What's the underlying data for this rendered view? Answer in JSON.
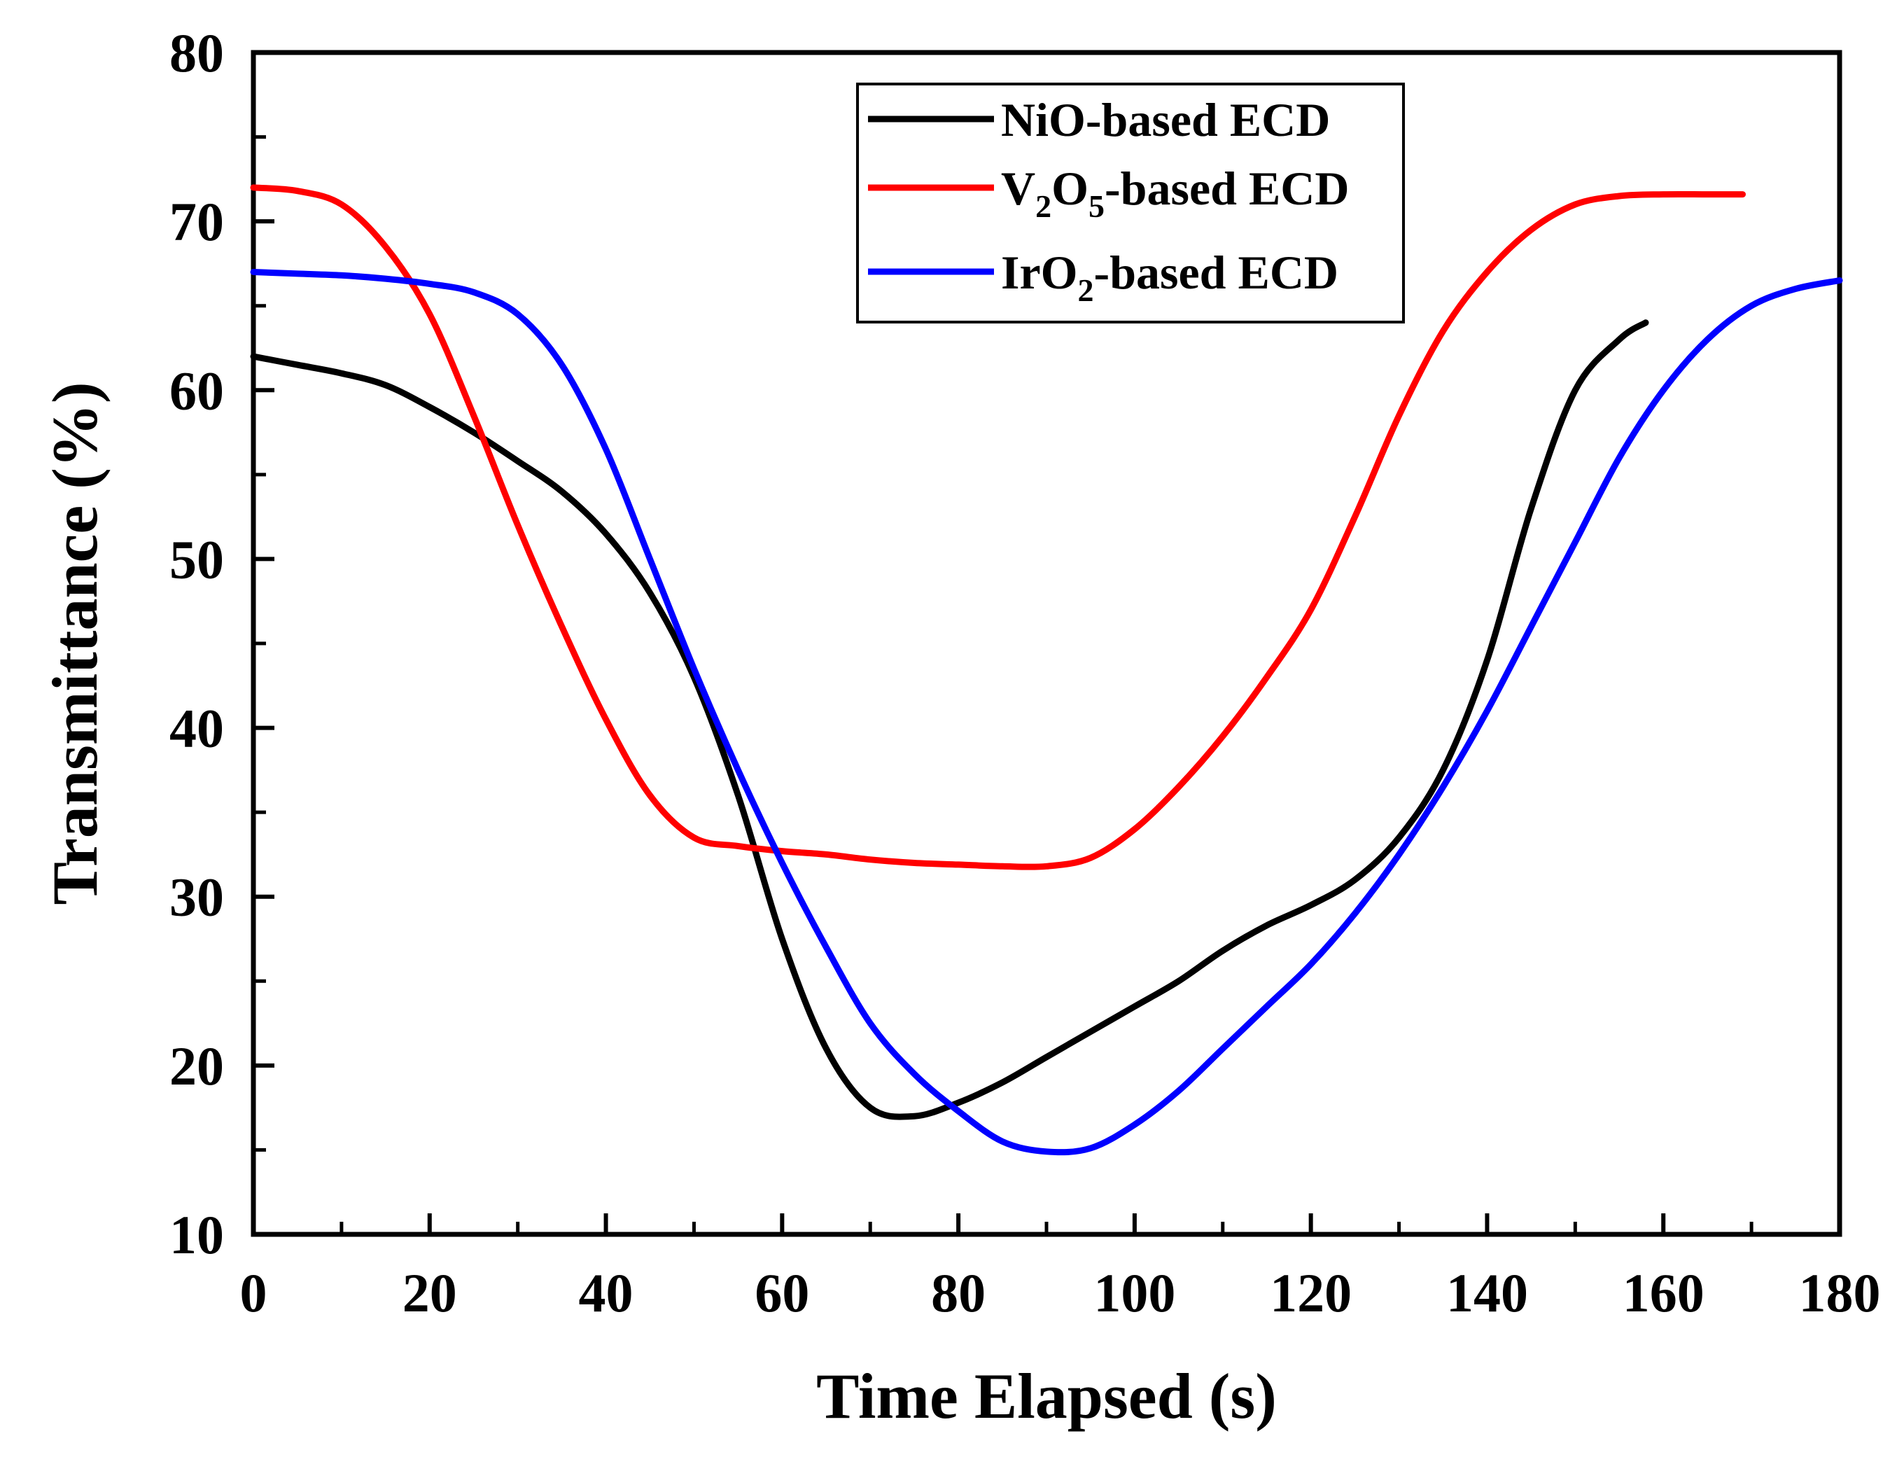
{
  "chart_data": {
    "type": "line",
    "title": "",
    "xlabel": "Time Elapsed (s)",
    "ylabel": "Transmittance (%)",
    "xlim": [
      0,
      180
    ],
    "ylim": [
      10,
      80
    ],
    "x_ticks": [
      0,
      20,
      40,
      60,
      80,
      100,
      120,
      140,
      160,
      180
    ],
    "y_ticks": [
      10,
      20,
      30,
      40,
      50,
      60,
      70,
      80
    ],
    "grid": false,
    "legend_position": "top-center",
    "series": [
      {
        "name": "NiO-based ECD",
        "legend_parts": [
          {
            "text": "NiO-based ECD",
            "sub": false
          }
        ],
        "color": "#000000",
        "points": [
          [
            0,
            62
          ],
          [
            5,
            61.5
          ],
          [
            10,
            61
          ],
          [
            15,
            60.3
          ],
          [
            20,
            59
          ],
          [
            25,
            57.5
          ],
          [
            30,
            55.8
          ],
          [
            35,
            54
          ],
          [
            40,
            51.5
          ],
          [
            45,
            48
          ],
          [
            50,
            43
          ],
          [
            55,
            36
          ],
          [
            60,
            27.5
          ],
          [
            65,
            21
          ],
          [
            70,
            17.5
          ],
          [
            75,
            17
          ],
          [
            80,
            17.8
          ],
          [
            85,
            19
          ],
          [
            90,
            20.5
          ],
          [
            95,
            22
          ],
          [
            100,
            23.5
          ],
          [
            105,
            25
          ],
          [
            110,
            26.8
          ],
          [
            115,
            28.3
          ],
          [
            120,
            29.5
          ],
          [
            125,
            31
          ],
          [
            130,
            33.5
          ],
          [
            135,
            37.5
          ],
          [
            140,
            44
          ],
          [
            145,
            53
          ],
          [
            150,
            60
          ],
          [
            155,
            63
          ],
          [
            158,
            64
          ]
        ]
      },
      {
        "name": "V2O5-based ECD",
        "legend_parts": [
          {
            "text": "V",
            "sub": false
          },
          {
            "text": "2",
            "sub": true
          },
          {
            "text": "O",
            "sub": false
          },
          {
            "text": "5",
            "sub": true
          },
          {
            "text": "-based ECD",
            "sub": false
          }
        ],
        "color": "#ff0000",
        "points": [
          [
            0,
            72
          ],
          [
            5,
            71.8
          ],
          [
            10,
            71
          ],
          [
            15,
            68.5
          ],
          [
            20,
            64.5
          ],
          [
            25,
            58.5
          ],
          [
            30,
            52
          ],
          [
            35,
            46
          ],
          [
            40,
            40.5
          ],
          [
            45,
            36
          ],
          [
            50,
            33.5
          ],
          [
            55,
            33
          ],
          [
            60,
            32.7
          ],
          [
            65,
            32.5
          ],
          [
            70,
            32.2
          ],
          [
            75,
            32
          ],
          [
            80,
            31.9
          ],
          [
            85,
            31.8
          ],
          [
            90,
            31.8
          ],
          [
            95,
            32.3
          ],
          [
            100,
            34
          ],
          [
            105,
            36.5
          ],
          [
            110,
            39.5
          ],
          [
            115,
            43
          ],
          [
            120,
            47
          ],
          [
            125,
            52.5
          ],
          [
            130,
            58.5
          ],
          [
            135,
            63.5
          ],
          [
            140,
            67
          ],
          [
            145,
            69.5
          ],
          [
            150,
            71
          ],
          [
            155,
            71.5
          ],
          [
            160,
            71.6
          ],
          [
            165,
            71.6
          ],
          [
            169,
            71.6
          ]
        ]
      },
      {
        "name": "IrO2-based ECD",
        "legend_parts": [
          {
            "text": "IrO",
            "sub": false
          },
          {
            "text": "2",
            "sub": true
          },
          {
            "text": "-based ECD",
            "sub": false
          }
        ],
        "color": "#0000ff",
        "points": [
          [
            0,
            67
          ],
          [
            5,
            66.9
          ],
          [
            10,
            66.8
          ],
          [
            15,
            66.6
          ],
          [
            20,
            66.3
          ],
          [
            25,
            65.8
          ],
          [
            30,
            64.5
          ],
          [
            35,
            61.5
          ],
          [
            40,
            56.5
          ],
          [
            45,
            50
          ],
          [
            50,
            43.5
          ],
          [
            55,
            37.5
          ],
          [
            60,
            32
          ],
          [
            65,
            27
          ],
          [
            70,
            22.5
          ],
          [
            75,
            19.5
          ],
          [
            80,
            17.3
          ],
          [
            85,
            15.5
          ],
          [
            90,
            14.9
          ],
          [
            95,
            15.1
          ],
          [
            100,
            16.5
          ],
          [
            105,
            18.5
          ],
          [
            110,
            21
          ],
          [
            115,
            23.5
          ],
          [
            120,
            26
          ],
          [
            125,
            29
          ],
          [
            130,
            32.5
          ],
          [
            135,
            36.5
          ],
          [
            140,
            41
          ],
          [
            145,
            46
          ],
          [
            150,
            51
          ],
          [
            155,
            56
          ],
          [
            160,
            60
          ],
          [
            165,
            63
          ],
          [
            170,
            65
          ],
          [
            175,
            66
          ],
          [
            180,
            66.5
          ]
        ]
      }
    ]
  }
}
